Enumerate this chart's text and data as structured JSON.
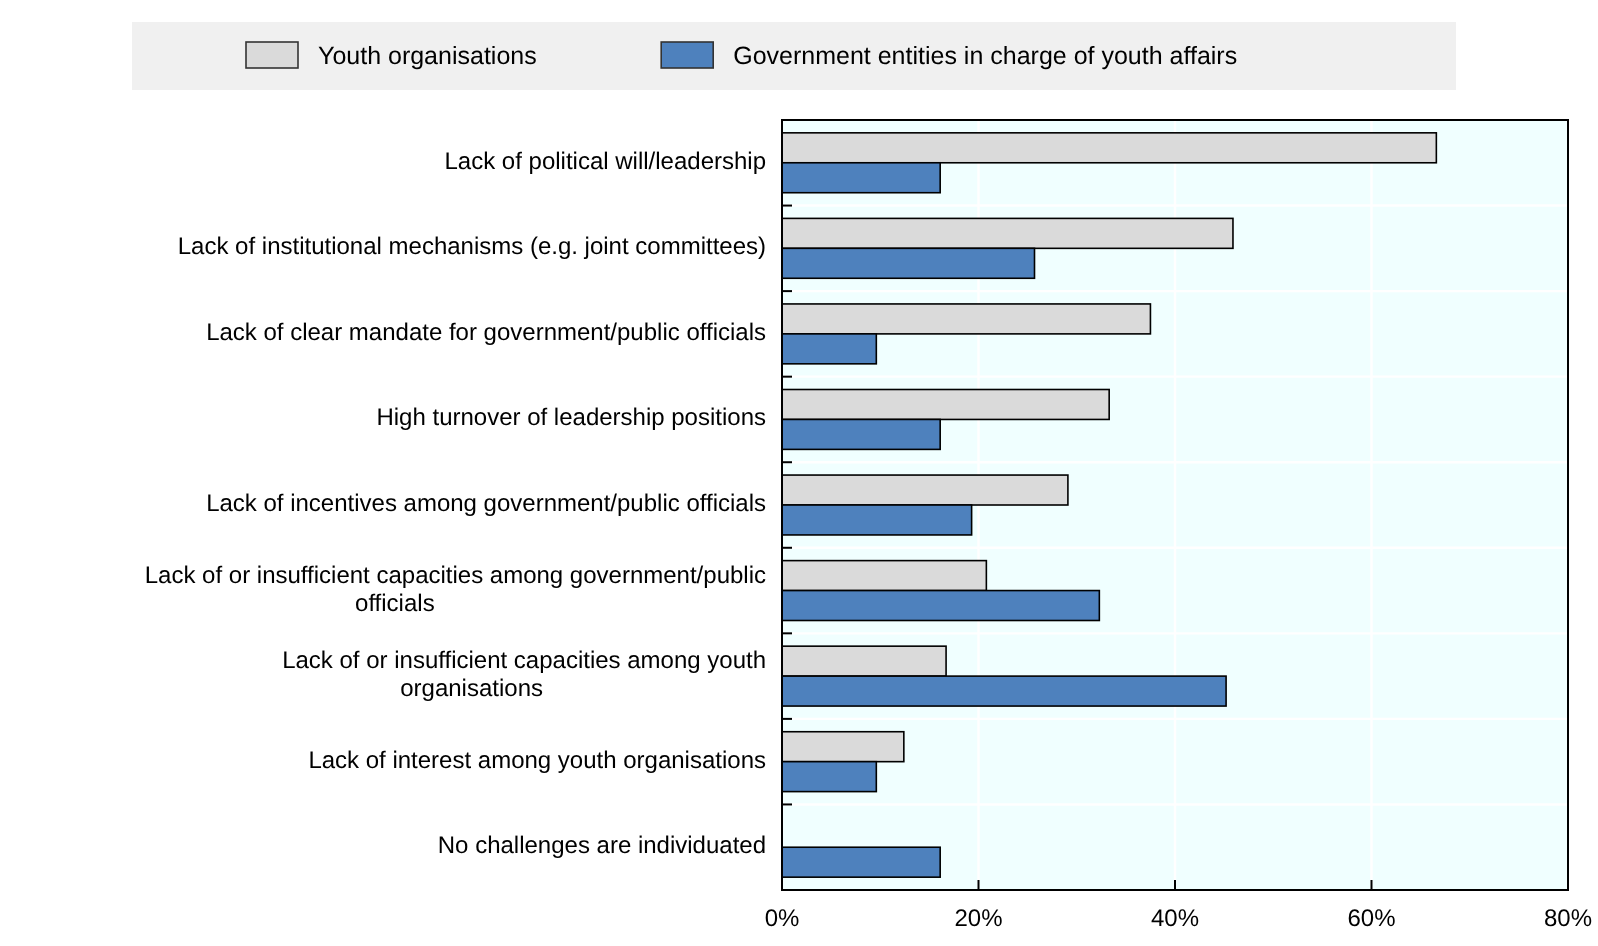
{
  "chart_data": {
    "type": "bar",
    "orientation": "horizontal",
    "categories": [
      "Lack of political will/leadership",
      "Lack of institutional mechanisms (e.g. joint committees)",
      "Lack of clear mandate for government/public officials",
      "High turnover of leadership positions",
      "Lack of incentives among government/public officials",
      "Lack of or insufficient capacities among government/public officials",
      "Lack of or insufficient capacities among youth organisations",
      "Lack of interest among youth organisations",
      "No challenges are individuated"
    ],
    "series": [
      {
        "name": "Youth organisations",
        "color": "#dadada",
        "values": [
          66.6,
          45.9,
          37.5,
          33.3,
          29.1,
          20.8,
          16.7,
          12.4,
          0
        ]
      },
      {
        "name": "Government entities in charge of youth affairs",
        "color": "#4e81bd",
        "values": [
          16.1,
          25.7,
          9.6,
          16.1,
          19.3,
          32.3,
          45.2,
          9.6,
          16.1
        ]
      }
    ],
    "xlim": [
      0,
      80
    ],
    "xticks": [
      {
        "value": 0,
        "label": "0%"
      },
      {
        "value": 20,
        "label": "20%"
      },
      {
        "value": 40,
        "label": "40%"
      },
      {
        "value": 60,
        "label": "60%"
      },
      {
        "value": 80,
        "label": "80%"
      }
    ],
    "grid": true,
    "legend": "top"
  }
}
